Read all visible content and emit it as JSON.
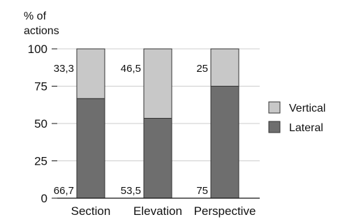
{
  "chart_data": {
    "type": "bar",
    "stacked": true,
    "ylabel_lines": [
      "% of",
      "actions"
    ],
    "xlabel": "",
    "categories": [
      "Section",
      "Elevation",
      "Perspective"
    ],
    "series": [
      {
        "name": "Lateral",
        "values": [
          66.7,
          53.5,
          75
        ],
        "labels": [
          "66,7",
          "53,5",
          "75"
        ],
        "color": "#6e6e6e"
      },
      {
        "name": "Vertical",
        "values": [
          33.3,
          46.5,
          25
        ],
        "labels": [
          "33,3",
          "46,5",
          "25"
        ],
        "color": "#c8c8c8"
      }
    ],
    "ylim": [
      0,
      100
    ],
    "yticks": [
      0,
      25,
      50,
      75,
      100
    ],
    "grid": true,
    "legend": {
      "placement": "right",
      "order": [
        "Vertical",
        "Lateral"
      ]
    },
    "colors": {
      "bar_edge": "#333333",
      "grid": "#cccccc",
      "axis": "#111111"
    }
  }
}
